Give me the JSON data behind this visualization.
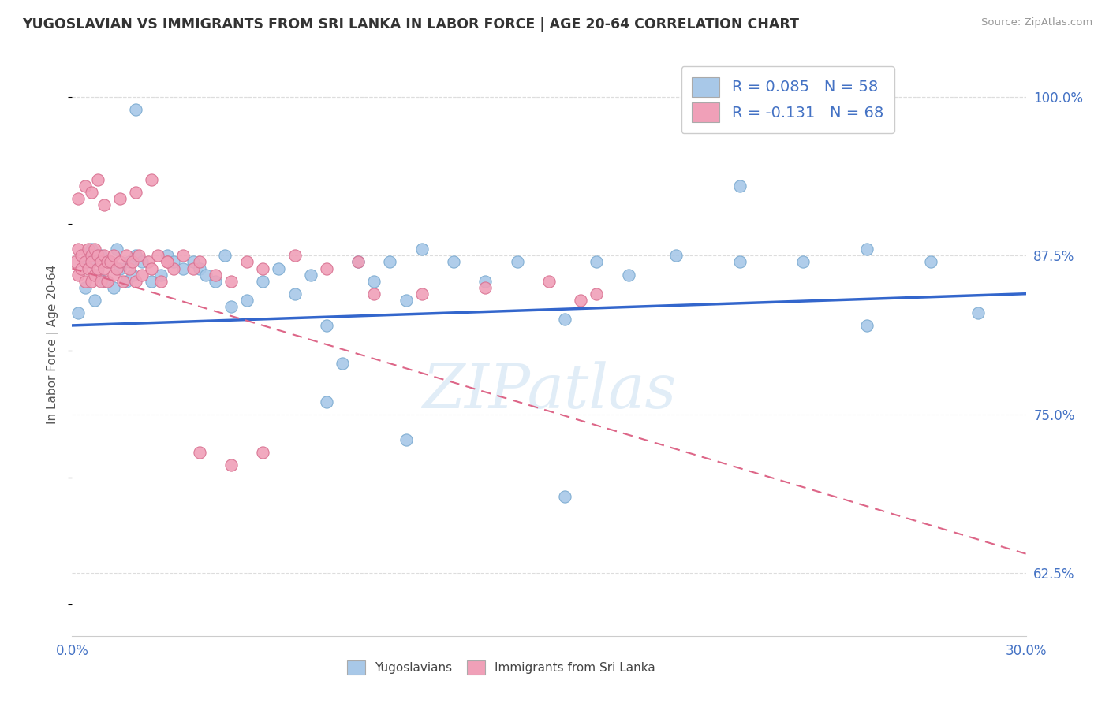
{
  "title": "YUGOSLAVIAN VS IMMIGRANTS FROM SRI LANKA IN LABOR FORCE | AGE 20-64 CORRELATION CHART",
  "source_text": "Source: ZipAtlas.com",
  "ylabel": "In Labor Force | Age 20-64",
  "xlim": [
    0.0,
    0.3
  ],
  "ylim": [
    0.575,
    1.035
  ],
  "yticks": [
    0.625,
    0.75,
    0.875,
    1.0
  ],
  "ytick_labels": [
    "62.5%",
    "75.0%",
    "87.5%",
    "100.0%"
  ],
  "xticks": [
    0.0,
    0.3
  ],
  "xtick_labels": [
    "0.0%",
    "30.0%"
  ],
  "color_yugo": "#a8c8e8",
  "color_sri": "#f0a0b8",
  "edge_yugo": "#7aaad0",
  "edge_sri": "#d87090",
  "trendline_yugo_color": "#3366cc",
  "trendline_sri_color": "#dd6688",
  "watermark": "ZIPatlas",
  "background_color": "#ffffff",
  "grid_color": "#dddddd",
  "legend_text_color": "#4472c4",
  "title_color": "#333333",
  "source_color": "#999999",
  "axis_label_color": "#555555",
  "tick_color": "#4472c4",
  "yugo_x": [
    0.002,
    0.004,
    0.005,
    0.006,
    0.007,
    0.008,
    0.009,
    0.01,
    0.012,
    0.013,
    0.014,
    0.015,
    0.017,
    0.018,
    0.019,
    0.02,
    0.022,
    0.025,
    0.028,
    0.03,
    0.032,
    0.035,
    0.038,
    0.04,
    0.042,
    0.045,
    0.048,
    0.05,
    0.055,
    0.06,
    0.065,
    0.07,
    0.075,
    0.08,
    0.09,
    0.095,
    0.1,
    0.105,
    0.11,
    0.12,
    0.13,
    0.14,
    0.155,
    0.165,
    0.175,
    0.19,
    0.21,
    0.23,
    0.25,
    0.27,
    0.21,
    0.25,
    0.085,
    0.105,
    0.155,
    0.285,
    0.02,
    0.08
  ],
  "yugo_y": [
    0.83,
    0.85,
    0.87,
    0.88,
    0.84,
    0.86,
    0.875,
    0.855,
    0.87,
    0.85,
    0.88,
    0.865,
    0.855,
    0.87,
    0.86,
    0.875,
    0.87,
    0.855,
    0.86,
    0.875,
    0.87,
    0.865,
    0.87,
    0.865,
    0.86,
    0.855,
    0.875,
    0.835,
    0.84,
    0.855,
    0.865,
    0.845,
    0.86,
    0.82,
    0.87,
    0.855,
    0.87,
    0.84,
    0.88,
    0.87,
    0.855,
    0.87,
    0.825,
    0.87,
    0.86,
    0.875,
    0.87,
    0.87,
    0.82,
    0.87,
    0.93,
    0.88,
    0.79,
    0.73,
    0.685,
    0.83,
    0.99,
    0.76
  ],
  "sri_x": [
    0.001,
    0.002,
    0.002,
    0.003,
    0.003,
    0.004,
    0.004,
    0.005,
    0.005,
    0.006,
    0.006,
    0.006,
    0.007,
    0.007,
    0.008,
    0.008,
    0.009,
    0.009,
    0.01,
    0.01,
    0.011,
    0.011,
    0.012,
    0.013,
    0.013,
    0.014,
    0.015,
    0.016,
    0.017,
    0.018,
    0.019,
    0.02,
    0.021,
    0.022,
    0.024,
    0.025,
    0.027,
    0.028,
    0.03,
    0.032,
    0.035,
    0.038,
    0.04,
    0.045,
    0.05,
    0.055,
    0.06,
    0.07,
    0.08,
    0.09,
    0.095,
    0.11,
    0.13,
    0.15,
    0.16,
    0.165,
    0.002,
    0.004,
    0.006,
    0.008,
    0.01,
    0.015,
    0.02,
    0.025,
    0.03,
    0.04,
    0.05,
    0.06
  ],
  "sri_y": [
    0.87,
    0.88,
    0.86,
    0.875,
    0.865,
    0.87,
    0.855,
    0.88,
    0.865,
    0.875,
    0.855,
    0.87,
    0.88,
    0.86,
    0.875,
    0.865,
    0.87,
    0.855,
    0.875,
    0.865,
    0.87,
    0.855,
    0.87,
    0.875,
    0.86,
    0.865,
    0.87,
    0.855,
    0.875,
    0.865,
    0.87,
    0.855,
    0.875,
    0.86,
    0.87,
    0.865,
    0.875,
    0.855,
    0.87,
    0.865,
    0.875,
    0.865,
    0.87,
    0.86,
    0.855,
    0.87,
    0.865,
    0.875,
    0.865,
    0.87,
    0.845,
    0.845,
    0.85,
    0.855,
    0.84,
    0.845,
    0.92,
    0.93,
    0.925,
    0.935,
    0.915,
    0.92,
    0.925,
    0.935,
    0.87,
    0.72,
    0.71,
    0.72
  ],
  "yugo_trend_x": [
    0.0,
    0.3
  ],
  "yugo_trend_y": [
    0.82,
    0.845
  ],
  "sri_trend_x": [
    0.0,
    0.3
  ],
  "sri_trend_y": [
    0.865,
    0.64
  ]
}
